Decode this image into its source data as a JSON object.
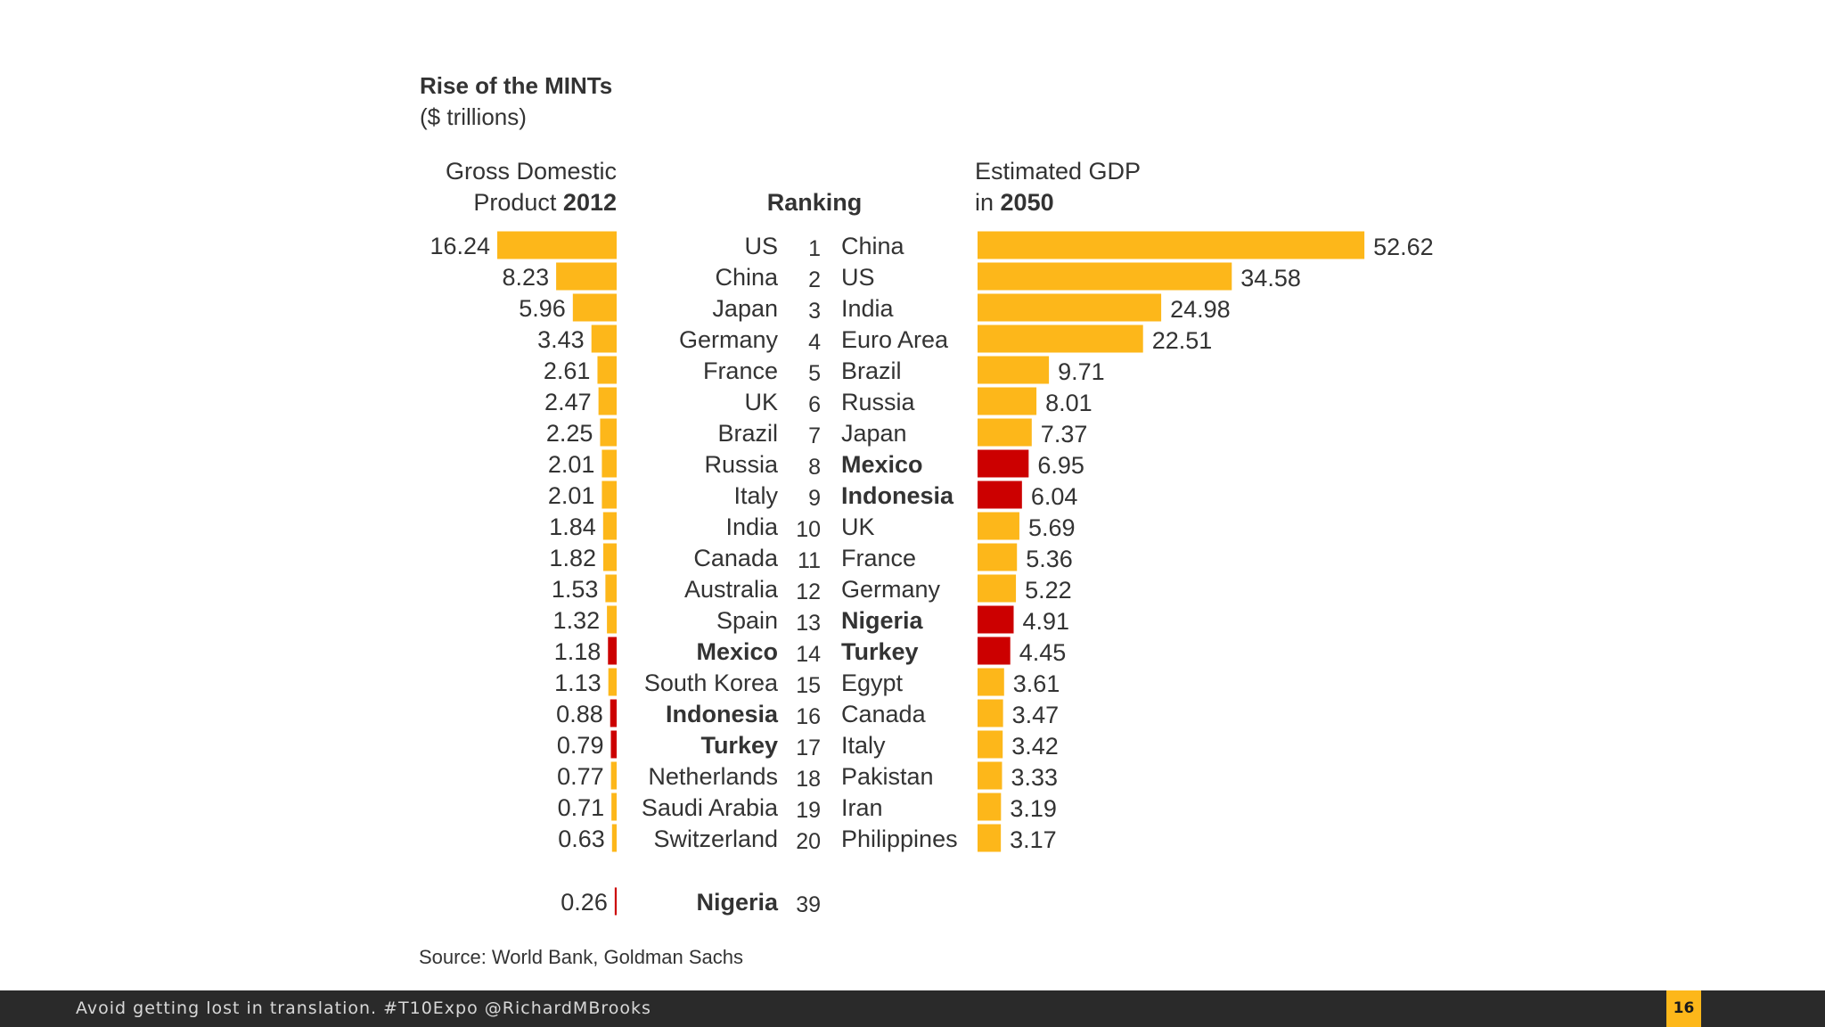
{
  "colors": {
    "gold": "#FDB71A",
    "red": "#CC0000",
    "text": "#333333",
    "footer_bg": "#2a2a2a"
  },
  "chart_data": {
    "type": "bar",
    "title": "Rise of the MINTs",
    "subtitle": "($ trillions)",
    "left_header": {
      "line1": "Gross Domestic",
      "line2": "Product ",
      "year": "2012"
    },
    "center_header": "Ranking",
    "right_header": {
      "line1": "Estimated GDP",
      "line2": "in ",
      "year": "2050"
    },
    "mints": [
      "Mexico",
      "Indonesia",
      "Nigeria",
      "Turkey"
    ],
    "gdp_2012": [
      {
        "rank": "1",
        "country": "US",
        "value": 16.24,
        "label": "16.24"
      },
      {
        "rank": "2",
        "country": "China",
        "value": 8.23,
        "label": "8.23"
      },
      {
        "rank": "3",
        "country": "Japan",
        "value": 5.96,
        "label": "5.96"
      },
      {
        "rank": "4",
        "country": "Germany",
        "value": 3.43,
        "label": "3.43"
      },
      {
        "rank": "5",
        "country": "France",
        "value": 2.61,
        "label": "2.61"
      },
      {
        "rank": "6",
        "country": "UK",
        "value": 2.47,
        "label": "2.47"
      },
      {
        "rank": "7",
        "country": "Brazil",
        "value": 2.25,
        "label": "2.25"
      },
      {
        "rank": "8",
        "country": "Russia",
        "value": 2.01,
        "label": "2.01"
      },
      {
        "rank": "9",
        "country": "Italy",
        "value": 2.01,
        "label": "2.01"
      },
      {
        "rank": "10",
        "country": "India",
        "value": 1.84,
        "label": "1.84"
      },
      {
        "rank": "11",
        "country": "Canada",
        "value": 1.82,
        "label": "1.82"
      },
      {
        "rank": "12",
        "country": "Australia",
        "value": 1.53,
        "label": "1.53"
      },
      {
        "rank": "13",
        "country": "Spain",
        "value": 1.32,
        "label": "1.32"
      },
      {
        "rank": "14",
        "country": "Mexico",
        "value": 1.18,
        "label": "1.18"
      },
      {
        "rank": "15",
        "country": "South Korea",
        "value": 1.13,
        "label": "1.13"
      },
      {
        "rank": "16",
        "country": "Indonesia",
        "value": 0.88,
        "label": "0.88"
      },
      {
        "rank": "17",
        "country": "Turkey",
        "value": 0.79,
        "label": "0.79"
      },
      {
        "rank": "18",
        "country": "Netherlands",
        "value": 0.77,
        "label": "0.77"
      },
      {
        "rank": "19",
        "country": "Saudi Arabia",
        "value": 0.71,
        "label": "0.71"
      },
      {
        "rank": "20",
        "country": "Switzerland",
        "value": 0.63,
        "label": "0.63"
      },
      {
        "rank": "39",
        "country": "Nigeria",
        "value": 0.26,
        "label": "0.26"
      }
    ],
    "gdp_2050": [
      {
        "country": "China",
        "value": 52.62,
        "label": "52.62"
      },
      {
        "country": "US",
        "value": 34.58,
        "label": "34.58"
      },
      {
        "country": "India",
        "value": 24.98,
        "label": "24.98"
      },
      {
        "country": "Euro Area",
        "value": 22.51,
        "label": "22.51"
      },
      {
        "country": "Brazil",
        "value": 9.71,
        "label": "9.71"
      },
      {
        "country": "Russia",
        "value": 8.01,
        "label": "8.01"
      },
      {
        "country": "Japan",
        "value": 7.37,
        "label": "7.37"
      },
      {
        "country": "Mexico",
        "value": 6.95,
        "label": "6.95"
      },
      {
        "country": "Indonesia",
        "value": 6.04,
        "label": "6.04"
      },
      {
        "country": "UK",
        "value": 5.69,
        "label": "5.69"
      },
      {
        "country": "France",
        "value": 5.36,
        "label": "5.36"
      },
      {
        "country": "Germany",
        "value": 5.22,
        "label": "5.22"
      },
      {
        "country": "Nigeria",
        "value": 4.91,
        "label": "4.91"
      },
      {
        "country": "Turkey",
        "value": 4.45,
        "label": "4.45"
      },
      {
        "country": "Egypt",
        "value": 3.61,
        "label": "3.61"
      },
      {
        "country": "Canada",
        "value": 3.47,
        "label": "3.47"
      },
      {
        "country": "Italy",
        "value": 3.42,
        "label": "3.42"
      },
      {
        "country": "Pakistan",
        "value": 3.33,
        "label": "3.33"
      },
      {
        "country": "Iran",
        "value": 3.19,
        "label": "3.19"
      },
      {
        "country": "Philippines",
        "value": 3.17,
        "label": "3.17"
      }
    ],
    "source": "Source: World Bank, Goldman Sachs"
  },
  "footer": {
    "text": "Avoid getting lost in translation. #T10Expo @RichardMBrooks",
    "page_number": "16"
  }
}
